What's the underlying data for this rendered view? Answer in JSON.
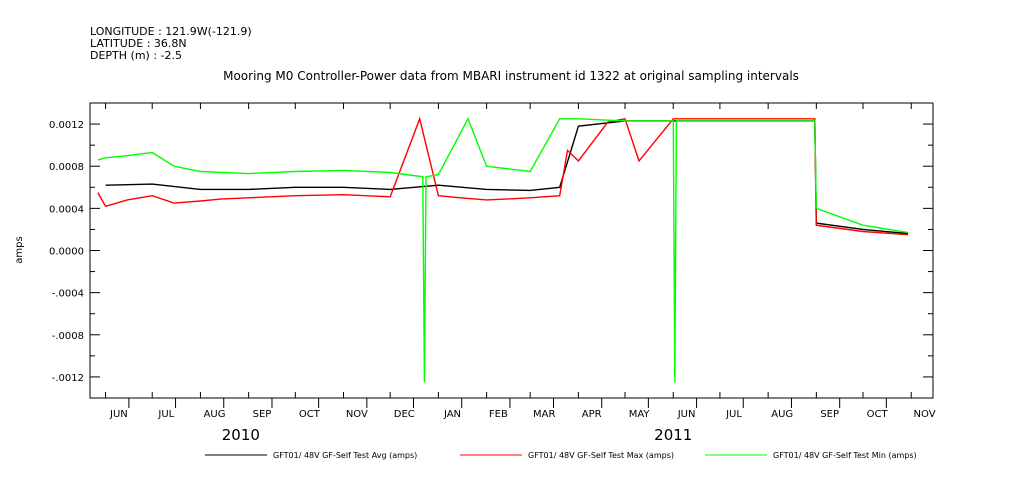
{
  "header_lines": [
    "LONGITUDE : 121.9W(-121.9)",
    "LATITUDE : 36.8N",
    "DEPTH (m) : -2.5"
  ],
  "chart_data": {
    "type": "line",
    "title": "Mooring M0 Controller-Power data from MBARI instrument id 1322 at original sampling intervals",
    "ylabel": "amps",
    "xlabel": "",
    "ylim": [
      -0.0014,
      0.0014
    ],
    "y_ticks": [
      "0.0012",
      "0.0008",
      "0.0004",
      "0.0000",
      "-.0004",
      "-.0008",
      "-.0012"
    ],
    "y_tick_values": [
      0.0012,
      0.0008,
      0.0004,
      0.0,
      -0.0004,
      -0.0008,
      -0.0012
    ],
    "x_range": [
      "2010-05-22",
      "2011-11-15"
    ],
    "x_ticks": [
      {
        "label": "JUN",
        "date": "2010-06-01"
      },
      {
        "label": "JUL",
        "date": "2010-07-01"
      },
      {
        "label": "AUG",
        "date": "2010-08-01"
      },
      {
        "label": "SEP",
        "date": "2010-09-01"
      },
      {
        "label": "OCT",
        "date": "2010-10-01"
      },
      {
        "label": "NOV",
        "date": "2010-11-01"
      },
      {
        "label": "DEC",
        "date": "2010-12-01"
      },
      {
        "label": "JAN",
        "date": "2011-01-01"
      },
      {
        "label": "FEB",
        "date": "2011-02-01"
      },
      {
        "label": "MAR",
        "date": "2011-03-01"
      },
      {
        "label": "APR",
        "date": "2011-04-01"
      },
      {
        "label": "MAY",
        "date": "2011-05-01"
      },
      {
        "label": "JUN",
        "date": "2011-06-01"
      },
      {
        "label": "JUL",
        "date": "2011-07-01"
      },
      {
        "label": "AUG",
        "date": "2011-08-01"
      },
      {
        "label": "SEP",
        "date": "2011-09-01"
      },
      {
        "label": "OCT",
        "date": "2011-10-01"
      },
      {
        "label": "NOV",
        "date": "2011-11-01"
      }
    ],
    "years": [
      {
        "label": "2010",
        "date": "2010-08-27"
      },
      {
        "label": "2011",
        "date": "2011-06-01"
      }
    ],
    "grid": false,
    "legend_position": "bottom",
    "series": [
      {
        "name": "GFT01/ 48V GF-Self Test Avg (amps)",
        "color": "#000000",
        "x": [
          "2010-06-01",
          "2010-07-01",
          "2010-08-01",
          "2010-09-01",
          "2010-10-01",
          "2010-11-01",
          "2010-12-01",
          "2011-01-01",
          "2011-02-01",
          "2011-03-01",
          "2011-03-20",
          "2011-04-01",
          "2011-05-01",
          "2011-06-01",
          "2011-07-01",
          "2011-08-01",
          "2011-08-31",
          "2011-09-01",
          "2011-10-01",
          "2011-10-30"
        ],
        "y": [
          0.00062,
          0.00063,
          0.00058,
          0.00058,
          0.0006,
          0.0006,
          0.00058,
          0.00062,
          0.00058,
          0.00057,
          0.0006,
          0.00118,
          0.00123,
          0.00123,
          0.00123,
          0.00123,
          0.00123,
          0.00026,
          0.0002,
          0.00016
        ]
      },
      {
        "name": "GFT01/ 48V GF-Self Test Max (amps)",
        "color": "#ff0000",
        "x": [
          "2010-05-27",
          "2010-06-01",
          "2010-06-15",
          "2010-07-01",
          "2010-07-15",
          "2010-08-01",
          "2010-08-15",
          "2010-09-01",
          "2010-10-01",
          "2010-11-01",
          "2010-12-01",
          "2010-12-20",
          "2011-01-01",
          "2011-01-15",
          "2011-02-01",
          "2011-02-15",
          "2011-03-01",
          "2011-03-20",
          "2011-03-25",
          "2011-04-01",
          "2011-04-20",
          "2011-05-01",
          "2011-05-10",
          "2011-06-01",
          "2011-08-31",
          "2011-09-01",
          "2011-10-01",
          "2011-10-30"
        ],
        "y": [
          0.00055,
          0.00042,
          0.00048,
          0.00052,
          0.00045,
          0.00047,
          0.00049,
          0.0005,
          0.00052,
          0.00053,
          0.00051,
          0.00125,
          0.00052,
          0.0005,
          0.00048,
          0.00049,
          0.0005,
          0.00052,
          0.00095,
          0.00085,
          0.00122,
          0.00125,
          0.00085,
          0.00125,
          0.00125,
          0.00024,
          0.00018,
          0.00015
        ]
      },
      {
        "name": "GFT01/ 48V GF-Self Test Min (amps)",
        "color": "#00ff00",
        "x": [
          "2010-05-27",
          "2010-06-01",
          "2010-06-15",
          "2010-07-01",
          "2010-07-15",
          "2010-08-01",
          "2010-09-01",
          "2010-10-01",
          "2010-11-01",
          "2010-12-01",
          "2010-12-22",
          "2010-12-23",
          "2010-12-24",
          "2011-01-01",
          "2011-01-20",
          "2011-02-01",
          "2011-03-01",
          "2011-03-20",
          "2011-04-01",
          "2011-05-01",
          "2011-06-01",
          "2011-06-02",
          "2011-06-03",
          "2011-08-31",
          "2011-09-01",
          "2011-10-01",
          "2011-10-30"
        ],
        "y": [
          0.00086,
          0.00088,
          0.0009,
          0.00093,
          0.0008,
          0.00075,
          0.00073,
          0.00075,
          0.00076,
          0.00074,
          0.0007,
          -0.00125,
          0.0007,
          0.00072,
          0.00125,
          0.0008,
          0.00075,
          0.00125,
          0.00125,
          0.00123,
          0.00123,
          -0.00125,
          0.00123,
          0.00123,
          0.0004,
          0.00024,
          0.00017
        ]
      }
    ]
  }
}
